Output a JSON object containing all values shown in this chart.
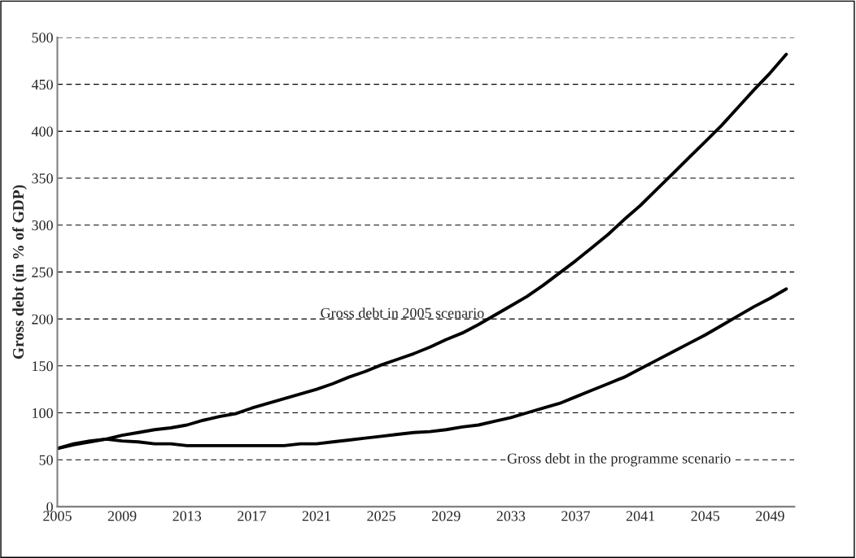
{
  "chart_data": {
    "type": "line",
    "ylabel": "Gross debt (in % of GDP)",
    "x": [
      2005,
      2006,
      2007,
      2008,
      2009,
      2010,
      2011,
      2012,
      2013,
      2014,
      2015,
      2016,
      2017,
      2018,
      2019,
      2020,
      2021,
      2022,
      2023,
      2024,
      2025,
      2026,
      2027,
      2028,
      2029,
      2030,
      2031,
      2032,
      2033,
      2034,
      2035,
      2036,
      2037,
      2038,
      2039,
      2040,
      2041,
      2042,
      2043,
      2044,
      2045,
      2046,
      2047,
      2048,
      2049,
      2050
    ],
    "series": [
      {
        "color": "#000000",
        "values": [
          62,
          67,
          70,
          72,
          76,
          79,
          82,
          84,
          87,
          92,
          96,
          99,
          105,
          110,
          115,
          120,
          125,
          131,
          138,
          144,
          151,
          157,
          163,
          170,
          178,
          185,
          194,
          204,
          214,
          224,
          236,
          249,
          262,
          276,
          290,
          306,
          321,
          338,
          355,
          372,
          389,
          406,
          425,
          444,
          462,
          482
        ]
      },
      {
        "color": "#000000",
        "values": [
          62,
          66,
          69,
          72,
          70,
          69,
          67,
          67,
          65,
          65,
          65,
          65,
          65,
          65,
          65,
          67,
          67,
          69,
          71,
          73,
          75,
          77,
          79,
          80,
          82,
          85,
          87,
          91,
          95,
          100,
          105,
          110,
          117,
          124,
          131,
          138,
          147,
          156,
          165,
          174,
          183,
          193,
          203,
          213,
          222,
          232
        ]
      }
    ],
    "annotations": [
      "Gross debt in 2005 scenario",
      "Gross debt in the programme scenario"
    ],
    "xlim": [
      2005,
      2050.5
    ],
    "xticks": [
      2005,
      2009,
      2013,
      2017,
      2021,
      2025,
      2029,
      2033,
      2037,
      2041,
      2045,
      2049
    ],
    "ylim": [
      0,
      500
    ],
    "yticks": [
      0,
      50,
      100,
      150,
      200,
      250,
      300,
      350,
      400,
      450,
      500
    ],
    "grid": "y",
    "line_style": "solid",
    "marker": "none"
  }
}
